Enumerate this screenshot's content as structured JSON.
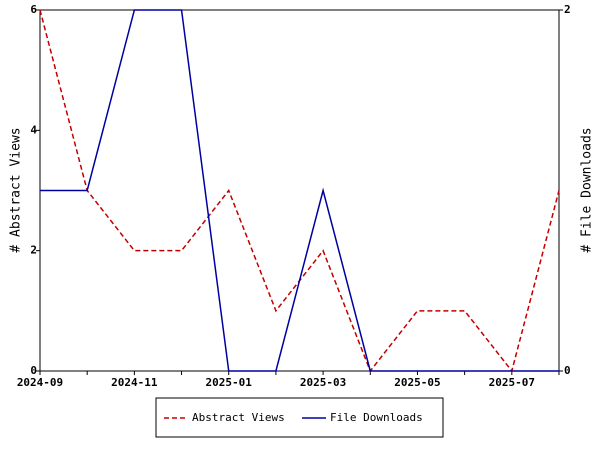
{
  "chart_data": {
    "type": "line",
    "categories": [
      "2024-09",
      null,
      "2024-11",
      null,
      "2025-01",
      null,
      "2025-03",
      null,
      "2025-05",
      null,
      "2025-07",
      null
    ],
    "y_label": "# Abstract Views",
    "y2_label": "# File Downloads",
    "series": [
      {
        "name": "Abstract Views",
        "color": "#c00000",
        "dashed": true,
        "values": [
          6,
          3,
          2,
          2,
          3,
          1,
          2,
          0,
          1,
          1,
          0,
          3
        ]
      },
      {
        "name": "File Downloads",
        "color": "#0000a0",
        "dashed": false,
        "axis": "y2",
        "values": [
          1,
          1,
          2,
          2,
          0,
          0,
          1,
          0,
          0,
          0,
          0,
          0
        ]
      }
    ],
    "ylim": [
      0,
      6
    ],
    "yticks": [
      0,
      2,
      4,
      6
    ],
    "y2lim": [
      0,
      2
    ],
    "y2ticks": [
      0,
      2
    ],
    "grid": false,
    "legend": "bottom"
  }
}
